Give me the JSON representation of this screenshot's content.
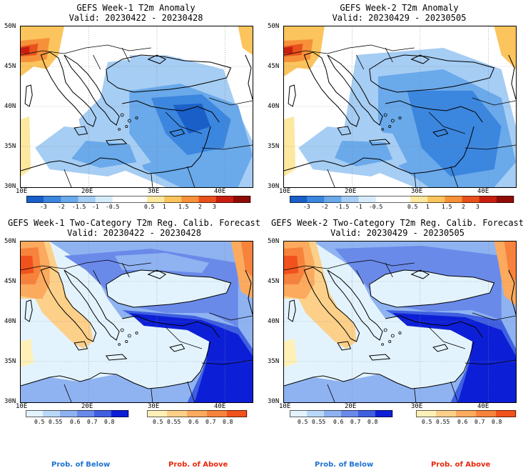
{
  "colors": {
    "below": "#1e73d2",
    "above": "#e8280a",
    "anomaly_scale": [
      "#1a5fc8",
      "#3b86de",
      "#6aa9ea",
      "#a6cdf3",
      "#d7ecfb",
      "#ffffff",
      "#ffffff",
      "#fde8a0",
      "#fbc45c",
      "#f6913a",
      "#e8511c",
      "#c81e10",
      "#8f0b06"
    ],
    "prob_below_scale": [
      "#e3f3fd",
      "#b9d8f8",
      "#8fb3f1",
      "#6a8aea",
      "#3f5fe0",
      "#0d1fd6"
    ],
    "prob_above_scale": [
      "#fff0b8",
      "#fdd08a",
      "#fbaa5e",
      "#f7823c",
      "#f1521d"
    ]
  },
  "panels": [
    {
      "title_line1": "GEFS Week-1 T2m Anomaly",
      "title_line2": "Valid: 20230422 - 20230428",
      "lat_labels": [
        "50N",
        "45N",
        "40N",
        "35N",
        "30N"
      ],
      "lon_labels": [
        "10E",
        "20E",
        "30E",
        "40E"
      ],
      "colorbar_labels": [
        "-3",
        "-2",
        "-1.5",
        "-1",
        "-0.5",
        "0.5",
        "1",
        "1.5",
        "2",
        "3"
      ]
    },
    {
      "title_line1": "GEFS Week-2 T2m Anomaly",
      "title_line2": "Valid: 20230429 - 20230505",
      "lat_labels": [
        "50N",
        "45N",
        "40N",
        "35N",
        "30N"
      ],
      "lon_labels": [
        "10E",
        "20E",
        "30E",
        "40E"
      ],
      "colorbar_labels": [
        "-3",
        "-2",
        "-1.5",
        "-1",
        "-0.5",
        "0.5",
        "1",
        "1.5",
        "2",
        "3"
      ]
    },
    {
      "title_line1": "GEFS Week-1 Two-Category T2m Reg. Calib. Forecast",
      "title_line2": "Valid: 20230422 - 20230428",
      "lat_labels": [
        "50N",
        "45N",
        "40N",
        "35N",
        "30N"
      ],
      "lon_labels": [
        "10E",
        "20E",
        "30E",
        "40E"
      ],
      "below_labels": [
        "0.5",
        "0.55",
        "0.6",
        "0.7",
        "0.8"
      ],
      "above_labels": [
        "0.5",
        "0.55",
        "0.6",
        "0.7",
        "0.8"
      ],
      "below_caption": "Prob. of Below",
      "above_caption": "Prob. of Above"
    },
    {
      "title_line1": "GEFS Week-2 Two-Category T2m Reg. Calib. Forecast",
      "title_line2": "Valid: 20230429 - 20230505",
      "lat_labels": [
        "50N",
        "45N",
        "40N",
        "35N",
        "30N"
      ],
      "lon_labels": [
        "10E",
        "20E",
        "30E",
        "40E"
      ],
      "below_labels": [
        "0.5",
        "0.55",
        "0.6",
        "0.7",
        "0.8"
      ],
      "above_labels": [
        "0.5",
        "0.55",
        "0.6",
        "0.7",
        "0.8"
      ],
      "below_caption": "Prob. of Below",
      "above_caption": "Prob. of Above"
    }
  ]
}
